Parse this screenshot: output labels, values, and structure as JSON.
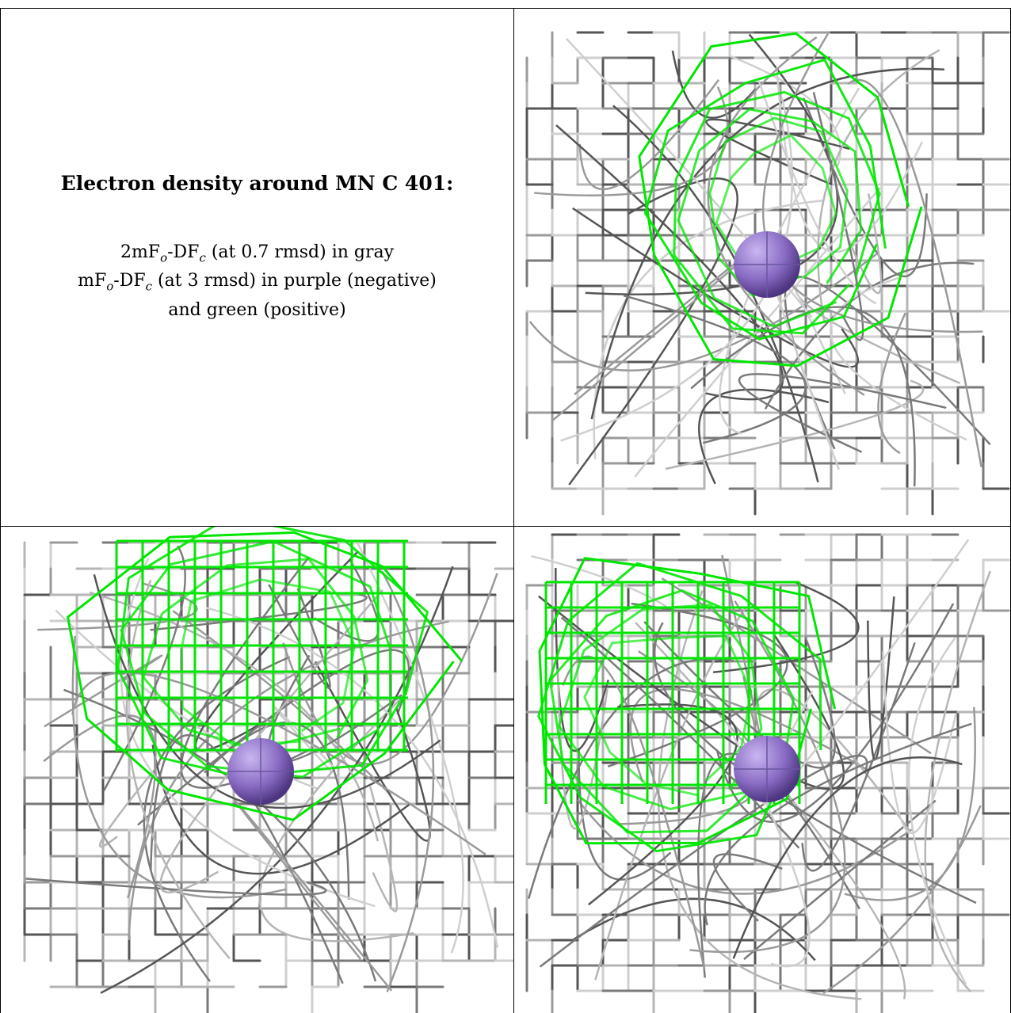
{
  "title": "Electron density around MN C 401:",
  "legend": {
    "line1": {
      "prefix": "2mF",
      "sub1": "o",
      "mid": "-DF",
      "sub2": "c",
      "suffix": " (at 0.7 rmsd) in gray"
    },
    "line2": {
      "prefix": "mF",
      "sub1": "o",
      "mid": "-DF",
      "sub2": "c",
      "suffix": " (at 3 rmsd) in purple (negative)"
    },
    "line3": "and green (positive)"
  },
  "colors": {
    "mesh_gray": "#9a9a9a",
    "mesh_dark": "#555555",
    "mesh_light": "#cfcfcf",
    "difference_positive": "#00e600",
    "atom_purple": "#8a6cc4"
  },
  "views": [
    {
      "id": "view-1",
      "label": ""
    },
    {
      "id": "view-2",
      "label": ""
    },
    {
      "id": "view-3",
      "label": ""
    }
  ]
}
